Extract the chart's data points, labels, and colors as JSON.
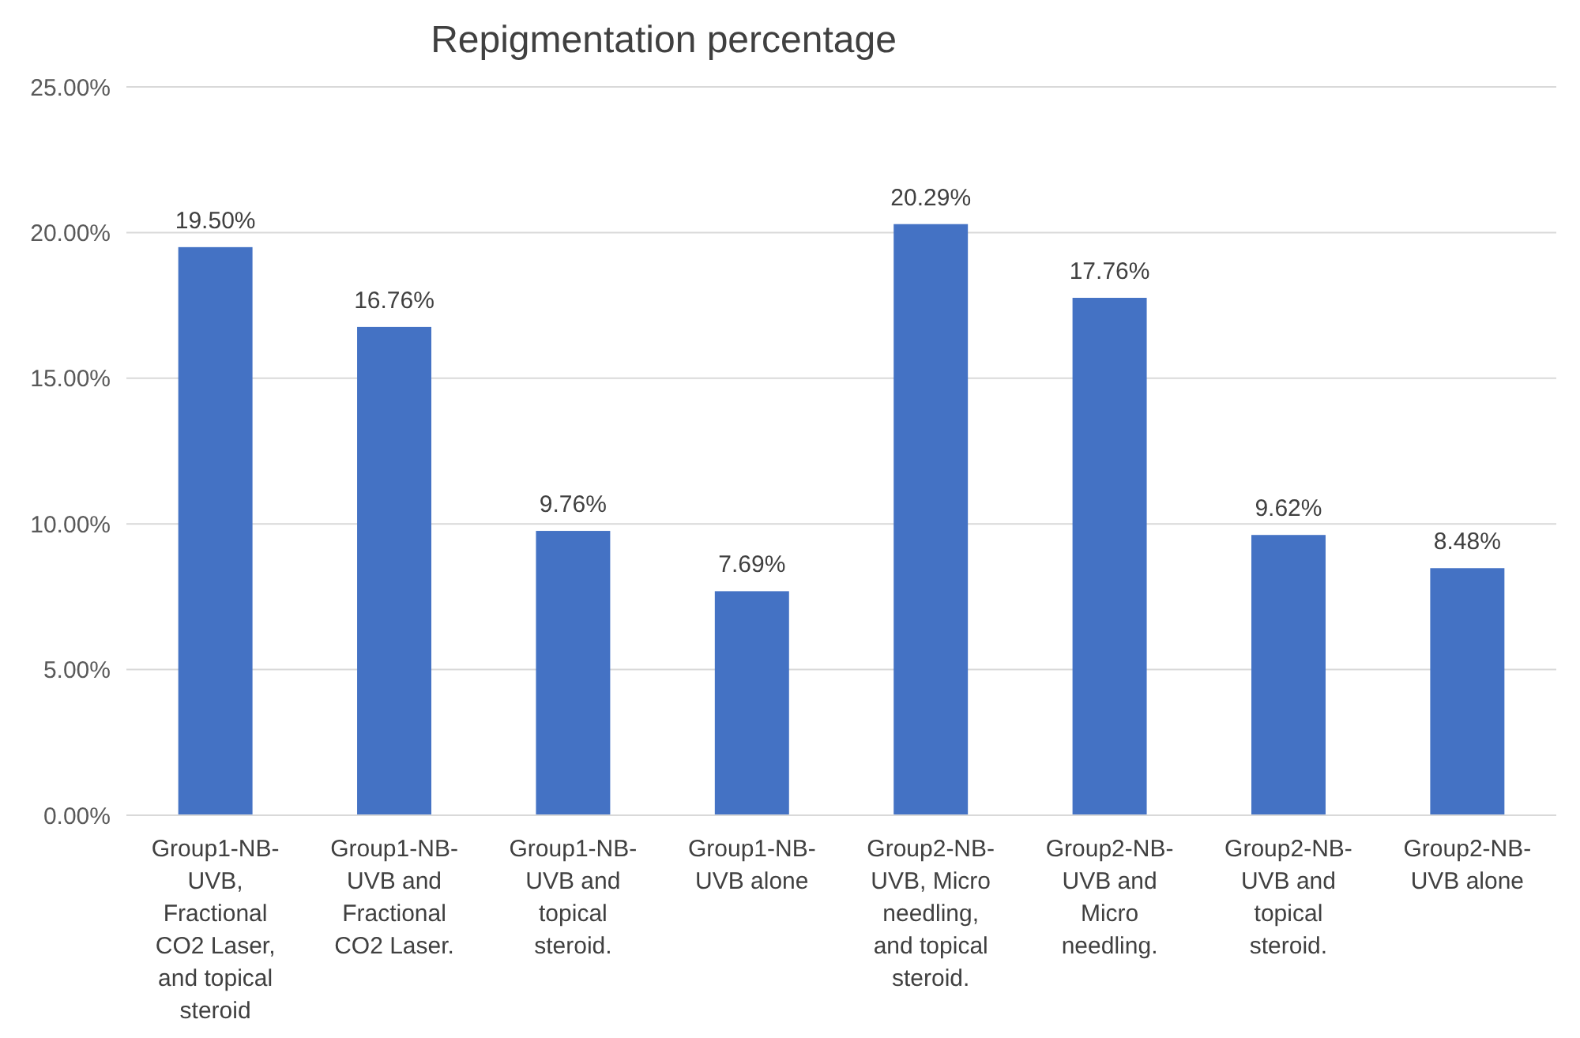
{
  "chart_data": {
    "type": "bar",
    "title": "Repigmentation percentage",
    "categories": [
      "Group1-NB-UVB, Fractional CO2 Laser, and topical steroid",
      "Group1-NB-UVB and Fractional CO2 Laser.",
      "Group1-NB-UVB and topical steroid.",
      "Group1-NB-UVB alone",
      "Group2-NB-UVB, Micro needling, and topical steroid.",
      "Group2-NB-UVB and Micro needling.",
      "Group2-NB-UVB and topical steroid.",
      "Group2-NB-UVB alone"
    ],
    "values": [
      19.5,
      16.76,
      9.76,
      7.69,
      20.29,
      17.76,
      9.62,
      8.48
    ],
    "value_labels": [
      "19.50%",
      "16.76%",
      "9.76%",
      "7.69%",
      "20.29%",
      "17.76%",
      "9.62%",
      "8.48%"
    ],
    "color": "#4472c4",
    "ylim": [
      0,
      25
    ],
    "yticks": [
      {
        "value": 0,
        "label": "0.00%"
      },
      {
        "value": 5,
        "label": "5.00%"
      },
      {
        "value": 10,
        "label": "10.00%"
      },
      {
        "value": 15,
        "label": "15.00%"
      },
      {
        "value": 20,
        "label": "20.00%"
      },
      {
        "value": 25,
        "label": "25.00%"
      }
    ],
    "grid": "y"
  }
}
